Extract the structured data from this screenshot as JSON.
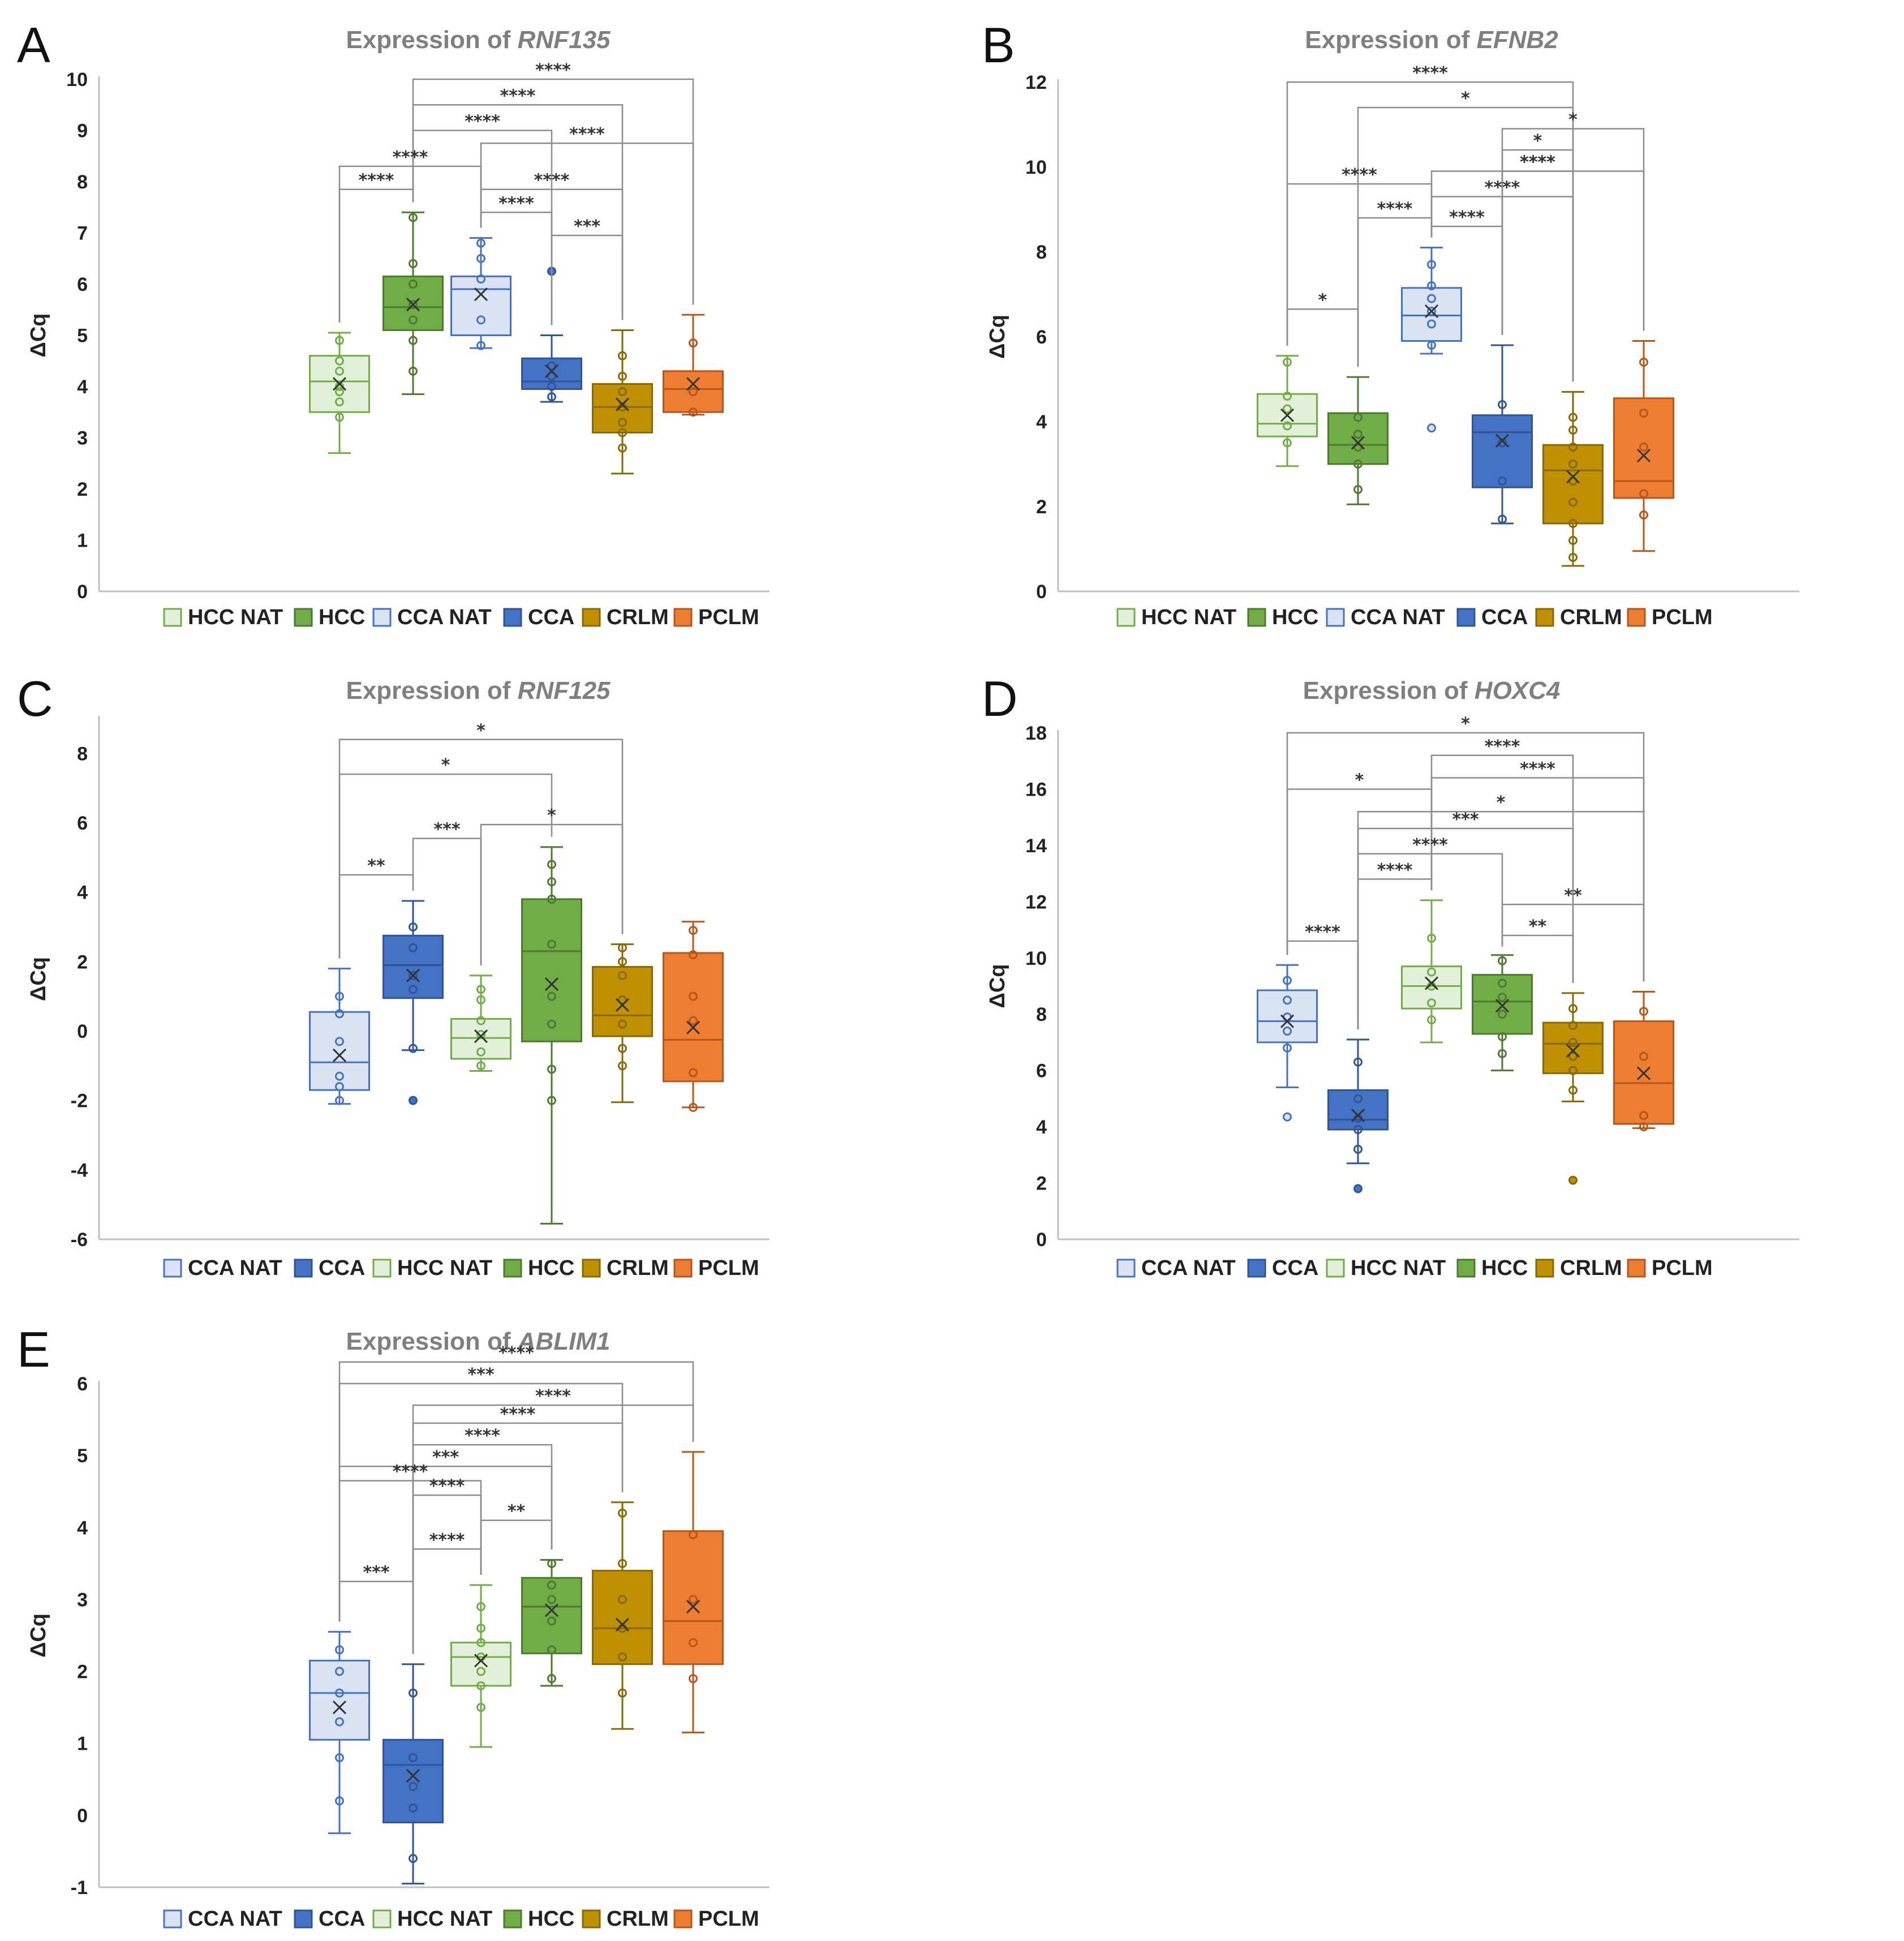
{
  "groups": {
    "HCC NAT": {
      "fill": "#e2efd9",
      "stroke": "#70ad47"
    },
    "HCC": {
      "fill": "#70ad47",
      "stroke": "#4e7a30"
    },
    "CCA NAT": {
      "fill": "#dae3f3",
      "stroke": "#4472c4"
    },
    "CCA": {
      "fill": "#4472c4",
      "stroke": "#2f5597"
    },
    "CRLM": {
      "fill": "#bf9000",
      "stroke": "#8a6800"
    },
    "PCLM": {
      "fill": "#ed7d31",
      "stroke": "#b8561a"
    }
  },
  "chart_data": [
    {
      "type": "box",
      "letter": "A",
      "title_prefix": "Expression of ",
      "gene": "RNF135",
      "ylabel": "ΔCq",
      "ylim": [
        0,
        10
      ],
      "yticks": [
        0,
        1,
        2,
        3,
        4,
        5,
        6,
        7,
        8,
        9,
        10
      ],
      "legend": [
        "HCC NAT",
        "HCC",
        "CCA NAT",
        "CCA",
        "CRLM",
        "PCLM"
      ],
      "boxes": [
        {
          "group": "HCC NAT",
          "min": 2.7,
          "q1": 3.5,
          "median": 4.1,
          "q3": 4.6,
          "max": 5.05,
          "mean": 4.05,
          "points": [
            3.4,
            3.7,
            3.9,
            4.0,
            4.3,
            4.5,
            4.9
          ],
          "outliers": []
        },
        {
          "group": "HCC",
          "min": 3.85,
          "q1": 5.1,
          "median": 5.55,
          "q3": 6.15,
          "max": 7.4,
          "mean": 5.6,
          "points": [
            4.3,
            4.9,
            5.3,
            5.6,
            6.0,
            6.4,
            7.3
          ],
          "outliers": []
        },
        {
          "group": "CCA NAT",
          "min": 4.75,
          "q1": 5.0,
          "median": 5.9,
          "q3": 6.15,
          "max": 6.9,
          "mean": 5.8,
          "points": [
            4.8,
            5.3,
            6.1,
            6.5,
            6.8
          ],
          "outliers": []
        },
        {
          "group": "CCA",
          "min": 3.7,
          "q1": 3.95,
          "median": 4.1,
          "q3": 4.55,
          "max": 5.0,
          "mean": 4.3,
          "points": [
            3.8,
            4.0,
            4.2,
            4.4
          ],
          "outliers": [
            6.25
          ]
        },
        {
          "group": "CRLM",
          "min": 2.3,
          "q1": 3.1,
          "median": 3.6,
          "q3": 4.05,
          "max": 5.1,
          "mean": 3.65,
          "points": [
            2.8,
            3.1,
            3.3,
            3.6,
            3.9,
            4.2,
            4.6
          ],
          "outliers": []
        },
        {
          "group": "PCLM",
          "min": 3.45,
          "q1": 3.5,
          "median": 3.95,
          "q3": 4.3,
          "max": 5.4,
          "mean": 4.05,
          "points": [
            3.5,
            3.9,
            4.85
          ],
          "outliers": []
        }
      ],
      "brackets": [
        {
          "from": 1,
          "to": 5,
          "y": 10.0,
          "label": "****"
        },
        {
          "from": 1,
          "to": 4,
          "y": 9.5,
          "label": "****"
        },
        {
          "from": 1,
          "to": 3,
          "y": 9.0,
          "label": "****"
        },
        {
          "from": 2,
          "to": 5,
          "y": 8.75,
          "label": "****"
        },
        {
          "from": 0,
          "to": 2,
          "y": 8.3,
          "label": "****"
        },
        {
          "from": 0,
          "to": 1,
          "y": 7.85,
          "label": "****"
        },
        {
          "from": 2,
          "to": 4,
          "y": 7.85,
          "label": "****"
        },
        {
          "from": 2,
          "to": 3,
          "y": 7.4,
          "label": "****"
        },
        {
          "from": 3,
          "to": 4,
          "y": 6.95,
          "label": "***"
        }
      ]
    },
    {
      "type": "box",
      "letter": "B",
      "title_prefix": "Expression of ",
      "gene": "EFNB2",
      "ylabel": "ΔCq",
      "ylim": [
        0,
        12
      ],
      "yticks": [
        0,
        2,
        4,
        6,
        8,
        10,
        12
      ],
      "legend": [
        "HCC NAT",
        "HCC",
        "CCA NAT",
        "CCA",
        "CRLM",
        "PCLM"
      ],
      "boxes": [
        {
          "group": "HCC NAT",
          "min": 2.95,
          "q1": 3.65,
          "median": 3.95,
          "q3": 4.65,
          "max": 5.55,
          "mean": 4.15,
          "points": [
            3.5,
            3.9,
            4.3,
            4.6,
            5.4
          ],
          "outliers": []
        },
        {
          "group": "HCC",
          "min": 2.05,
          "q1": 3.0,
          "median": 3.45,
          "q3": 4.2,
          "max": 5.05,
          "mean": 3.5,
          "points": [
            2.4,
            3.0,
            3.4,
            3.7,
            4.1
          ],
          "outliers": []
        },
        {
          "group": "CCA NAT",
          "min": 5.6,
          "q1": 5.9,
          "median": 6.5,
          "q3": 7.15,
          "max": 8.1,
          "mean": 6.6,
          "points": [
            5.8,
            6.3,
            6.6,
            6.9,
            7.2,
            7.7
          ],
          "outliers": [
            3.85
          ]
        },
        {
          "group": "CCA",
          "min": 1.6,
          "q1": 2.45,
          "median": 3.75,
          "q3": 4.15,
          "max": 5.8,
          "mean": 3.55,
          "points": [
            1.7,
            2.6,
            3.5,
            4.4
          ],
          "outliers": []
        },
        {
          "group": "CRLM",
          "min": 0.6,
          "q1": 1.6,
          "median": 2.85,
          "q3": 3.45,
          "max": 4.7,
          "mean": 2.7,
          "points": [
            0.8,
            1.2,
            1.6,
            2.1,
            2.6,
            3.0,
            3.4,
            3.8,
            4.1
          ],
          "outliers": []
        },
        {
          "group": "PCLM",
          "min": 0.95,
          "q1": 2.2,
          "median": 2.6,
          "q3": 4.55,
          "max": 5.9,
          "mean": 3.2,
          "points": [
            1.8,
            2.3,
            3.4,
            4.2,
            5.4
          ],
          "outliers": []
        }
      ],
      "brackets": [
        {
          "from": 0,
          "to": 4,
          "y": 12.0,
          "label": "****"
        },
        {
          "from": 1,
          "to": 4,
          "y": 11.4,
          "label": "*"
        },
        {
          "from": 3,
          "to": 5,
          "y": 10.9,
          "label": "*"
        },
        {
          "from": 3,
          "to": 4,
          "y": 10.4,
          "label": "*"
        },
        {
          "from": 3,
          "to": 4,
          "y": 9.9,
          "label": "****"
        },
        {
          "from": 0,
          "to": 2,
          "y": 9.6,
          "label": "****"
        },
        {
          "from": 2,
          "to": 5,
          "y": 9.9,
          "label": "****"
        },
        {
          "from": 2,
          "to": 4,
          "y": 9.3,
          "label": "****"
        },
        {
          "from": 1,
          "to": 2,
          "y": 8.8,
          "label": "****"
        },
        {
          "from": 2,
          "to": 3,
          "y": 8.6,
          "label": "****"
        },
        {
          "from": 0,
          "to": 1,
          "y": 6.65,
          "label": "*"
        }
      ]
    },
    {
      "type": "box",
      "letter": "C",
      "title_prefix": "Expression of ",
      "gene": "RNF125",
      "ylabel": "ΔCq",
      "ylim": [
        -6,
        9
      ],
      "yticks": [
        -6,
        -4,
        -2,
        0,
        2,
        4,
        6,
        8
      ],
      "legend": [
        "CCA NAT",
        "CCA",
        "HCC NAT",
        "HCC",
        "CRLM",
        "PCLM"
      ],
      "boxes": [
        {
          "group": "CCA NAT",
          "min": -2.1,
          "q1": -1.7,
          "median": -0.9,
          "q3": 0.55,
          "max": 1.8,
          "mean": -0.7,
          "points": [
            -2.0,
            -1.6,
            -1.3,
            -0.3,
            0.5,
            1.0
          ],
          "outliers": []
        },
        {
          "group": "CCA",
          "min": -0.55,
          "q1": 0.95,
          "median": 1.9,
          "q3": 2.75,
          "max": 3.75,
          "mean": 1.6,
          "points": [
            -0.5,
            1.2,
            1.6,
            2.4,
            3.0
          ],
          "outliers": [
            -2.0
          ]
        },
        {
          "group": "HCC NAT",
          "min": -1.15,
          "q1": -0.8,
          "median": -0.2,
          "q3": 0.35,
          "max": 1.6,
          "mean": -0.15,
          "points": [
            -1.0,
            -0.6,
            -0.1,
            0.3,
            0.9,
            1.2
          ],
          "outliers": []
        },
        {
          "group": "HCC",
          "min": -5.55,
          "q1": -0.3,
          "median": 2.3,
          "q3": 3.8,
          "max": 5.3,
          "mean": 1.35,
          "points": [
            -2.0,
            -1.1,
            0.2,
            1.0,
            2.5,
            3.8,
            4.3,
            4.8
          ],
          "outliers": []
        },
        {
          "group": "CRLM",
          "min": -2.05,
          "q1": -0.15,
          "median": 0.45,
          "q3": 1.85,
          "max": 2.5,
          "mean": 0.75,
          "points": [
            -1.0,
            -0.5,
            0.2,
            0.9,
            1.6,
            2.0,
            2.4
          ],
          "outliers": []
        },
        {
          "group": "PCLM",
          "min": -2.2,
          "q1": -1.45,
          "median": -0.25,
          "q3": 2.25,
          "max": 3.15,
          "mean": 0.1,
          "points": [
            -2.2,
            -1.2,
            0.3,
            1.0,
            2.2,
            2.9
          ],
          "outliers": []
        }
      ],
      "brackets": [
        {
          "from": 0,
          "to": 4,
          "y": 8.4,
          "label": "*"
        },
        {
          "from": 0,
          "to": 3,
          "y": 7.4,
          "label": "*"
        },
        {
          "from": 2,
          "to": 4,
          "y": 5.95,
          "label": "*"
        },
        {
          "from": 1,
          "to": 2,
          "y": 5.55,
          "label": "***"
        },
        {
          "from": 0,
          "to": 1,
          "y": 4.5,
          "label": "**"
        }
      ]
    },
    {
      "type": "box",
      "letter": "D",
      "title_prefix": "Expression of ",
      "gene": "HOXC4",
      "ylabel": "ΔCq",
      "ylim": [
        0,
        18
      ],
      "yticks": [
        0,
        2,
        4,
        6,
        8,
        10,
        12,
        14,
        16,
        18
      ],
      "legend": [
        "CCA NAT",
        "CCA",
        "HCC NAT",
        "HCC",
        "CRLM",
        "PCLM"
      ],
      "boxes": [
        {
          "group": "CCA NAT",
          "min": 5.4,
          "q1": 7.0,
          "median": 7.75,
          "q3": 8.85,
          "max": 9.75,
          "mean": 7.75,
          "points": [
            6.8,
            7.4,
            7.9,
            8.5,
            9.2
          ],
          "outliers": [
            4.35
          ]
        },
        {
          "group": "CCA",
          "min": 2.7,
          "q1": 3.9,
          "median": 4.25,
          "q3": 5.3,
          "max": 7.1,
          "mean": 4.4,
          "points": [
            3.2,
            3.9,
            4.3,
            5.0,
            6.3
          ],
          "outliers": [
            1.8
          ]
        },
        {
          "group": "HCC NAT",
          "min": 7.0,
          "q1": 8.2,
          "median": 9.0,
          "q3": 9.7,
          "max": 12.05,
          "mean": 9.1,
          "points": [
            7.8,
            8.4,
            9.0,
            9.5,
            10.7
          ],
          "outliers": []
        },
        {
          "group": "HCC",
          "min": 6.0,
          "q1": 7.3,
          "median": 8.45,
          "q3": 9.4,
          "max": 10.1,
          "mean": 8.3,
          "points": [
            6.6,
            7.2,
            8.0,
            8.6,
            9.1,
            9.9
          ],
          "outliers": []
        },
        {
          "group": "CRLM",
          "min": 4.9,
          "q1": 5.9,
          "median": 6.95,
          "q3": 7.7,
          "max": 8.75,
          "mean": 6.7,
          "points": [
            5.3,
            6.0,
            6.5,
            7.0,
            7.6,
            8.2
          ],
          "outliers": [
            2.1
          ]
        },
        {
          "group": "PCLM",
          "min": 3.95,
          "q1": 4.1,
          "median": 5.55,
          "q3": 7.75,
          "max": 8.8,
          "mean": 5.9,
          "points": [
            4.0,
            4.4,
            6.5,
            8.1
          ],
          "outliers": []
        }
      ],
      "brackets": [
        {
          "from": 0,
          "to": 5,
          "y": 18.0,
          "label": "*"
        },
        {
          "from": 2,
          "to": 4,
          "y": 17.2,
          "label": "****"
        },
        {
          "from": 2,
          "to": 5,
          "y": 16.4,
          "label": "****"
        },
        {
          "from": 0,
          "to": 2,
          "y": 16.0,
          "label": "*"
        },
        {
          "from": 1,
          "to": 5,
          "y": 15.2,
          "label": "*"
        },
        {
          "from": 1,
          "to": 4,
          "y": 14.6,
          "label": "***"
        },
        {
          "from": 1,
          "to": 3,
          "y": 13.7,
          "label": "****"
        },
        {
          "from": 1,
          "to": 2,
          "y": 12.8,
          "label": "****"
        },
        {
          "from": 3,
          "to": 5,
          "y": 11.9,
          "label": "**"
        },
        {
          "from": 3,
          "to": 4,
          "y": 10.8,
          "label": "**"
        },
        {
          "from": 0,
          "to": 1,
          "y": 10.6,
          "label": "****"
        }
      ]
    },
    {
      "type": "box",
      "letter": "E",
      "title_prefix": "Expression of ",
      "gene": "ABLIM1",
      "ylabel": "ΔCq",
      "ylim": [
        -1,
        6
      ],
      "yticks": [
        -1,
        0,
        1,
        2,
        3,
        4,
        5,
        6
      ],
      "legend": [
        "CCA NAT",
        "CCA",
        "HCC NAT",
        "HCC",
        "CRLM",
        "PCLM"
      ],
      "boxes": [
        {
          "group": "CCA NAT",
          "min": -0.25,
          "q1": 1.05,
          "median": 1.7,
          "q3": 2.15,
          "max": 2.55,
          "mean": 1.5,
          "points": [
            0.2,
            0.8,
            1.3,
            1.7,
            2.0,
            2.3
          ],
          "outliers": []
        },
        {
          "group": "CCA",
          "min": -0.95,
          "q1": -0.1,
          "median": 0.7,
          "q3": 1.05,
          "max": 2.1,
          "mean": 0.55,
          "points": [
            -0.6,
            0.1,
            0.4,
            0.8,
            1.7
          ],
          "outliers": []
        },
        {
          "group": "HCC NAT",
          "min": 0.95,
          "q1": 1.8,
          "median": 2.2,
          "q3": 2.4,
          "max": 3.2,
          "mean": 2.15,
          "points": [
            1.5,
            1.8,
            2.0,
            2.2,
            2.4,
            2.6,
            2.9
          ],
          "outliers": []
        },
        {
          "group": "HCC",
          "min": 1.8,
          "q1": 2.25,
          "median": 2.9,
          "q3": 3.3,
          "max": 3.55,
          "mean": 2.85,
          "points": [
            1.9,
            2.3,
            2.7,
            3.0,
            3.2,
            3.5
          ],
          "outliers": []
        },
        {
          "group": "CRLM",
          "min": 1.2,
          "q1": 2.1,
          "median": 2.6,
          "q3": 3.4,
          "max": 4.35,
          "mean": 2.65,
          "points": [
            1.7,
            2.2,
            2.6,
            3.0,
            3.5,
            4.2
          ],
          "outliers": []
        },
        {
          "group": "PCLM",
          "min": 1.15,
          "q1": 2.1,
          "median": 2.7,
          "q3": 3.95,
          "max": 5.05,
          "mean": 2.9,
          "points": [
            1.9,
            2.4,
            3.0,
            3.9
          ],
          "outliers": []
        }
      ],
      "brackets": [
        {
          "from": 0,
          "to": 5,
          "y": 6.3,
          "label": "****"
        },
        {
          "from": 0,
          "to": 4,
          "y": 6.0,
          "label": "***"
        },
        {
          "from": 1,
          "to": 5,
          "y": 5.7,
          "label": "****"
        },
        {
          "from": 1,
          "to": 4,
          "y": 5.45,
          "label": "****"
        },
        {
          "from": 1,
          "to": 3,
          "y": 5.15,
          "label": "****"
        },
        {
          "from": 0,
          "to": 3,
          "y": 4.85,
          "label": "***"
        },
        {
          "from": 0,
          "to": 2,
          "y": 4.65,
          "label": "****"
        },
        {
          "from": 1,
          "to": 2,
          "y": 4.45,
          "label": "****"
        },
        {
          "from": 2,
          "to": 3,
          "y": 4.1,
          "label": "**"
        },
        {
          "from": 1,
          "to": 2,
          "y": 3.7,
          "label": "****"
        },
        {
          "from": 0,
          "to": 1,
          "y": 3.25,
          "label": "***"
        }
      ]
    }
  ]
}
